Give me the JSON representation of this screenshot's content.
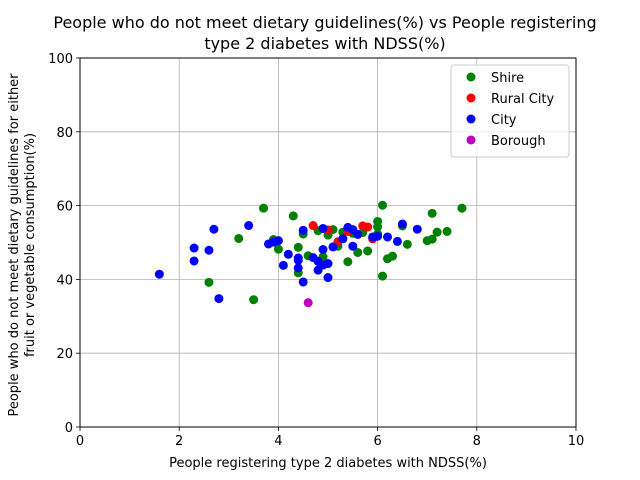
{
  "chart_data": {
    "type": "scatter",
    "title_lines": [
      "People who do not meet dietary guidelines(%) vs People registering",
      "type 2 diabetes with NDSS(%)"
    ],
    "xlabel": "People registering type 2 diabetes with NDSS(%)",
    "ylabel_lines": [
      "People who do not meet dietary guidelines for either",
      "fruit or vegetable consumption(%)"
    ],
    "xlim": [
      0,
      10
    ],
    "ylim": [
      0,
      100
    ],
    "x_ticks": [
      0,
      2,
      4,
      6,
      8,
      10
    ],
    "y_ticks": [
      0,
      20,
      40,
      60,
      80,
      100
    ],
    "grid": true,
    "legend_position": "top-right",
    "series": [
      {
        "name": "Shire",
        "color": "#008000",
        "points": [
          [
            2.6,
            39.2
          ],
          [
            3.2,
            51.1
          ],
          [
            3.5,
            34.5
          ],
          [
            3.7,
            59.3
          ],
          [
            3.9,
            50.8
          ],
          [
            4.0,
            48.2
          ],
          [
            4.3,
            57.2
          ],
          [
            4.4,
            48.7
          ],
          [
            4.4,
            41.8
          ],
          [
            4.5,
            52.3
          ],
          [
            4.6,
            46.4
          ],
          [
            4.8,
            53.2
          ],
          [
            4.9,
            46.1
          ],
          [
            5.0,
            52.0
          ],
          [
            5.1,
            53.5
          ],
          [
            5.2,
            49.0
          ],
          [
            5.3,
            52.8
          ],
          [
            5.4,
            44.8
          ],
          [
            5.5,
            52.5
          ],
          [
            5.6,
            47.3
          ],
          [
            5.7,
            52.7
          ],
          [
            5.8,
            47.7
          ],
          [
            6.0,
            55.7
          ],
          [
            6.0,
            54.3
          ],
          [
            6.0,
            52.3
          ],
          [
            6.1,
            60.1
          ],
          [
            6.1,
            40.9
          ],
          [
            6.2,
            45.6
          ],
          [
            6.3,
            46.3
          ],
          [
            6.5,
            54.5
          ],
          [
            6.6,
            49.5
          ],
          [
            7.0,
            50.5
          ],
          [
            7.1,
            50.9
          ],
          [
            7.1,
            57.9
          ],
          [
            7.2,
            52.8
          ],
          [
            7.4,
            53.0
          ],
          [
            7.7,
            59.3
          ]
        ]
      },
      {
        "name": "Rural City",
        "color": "#ff0000",
        "points": [
          [
            4.7,
            54.6
          ],
          [
            5.0,
            53.4
          ],
          [
            5.2,
            50.2
          ],
          [
            5.4,
            53.0
          ],
          [
            5.7,
            54.5
          ],
          [
            5.8,
            54.2
          ],
          [
            5.9,
            51.0
          ]
        ]
      },
      {
        "name": "City",
        "color": "#0000ff",
        "points": [
          [
            1.6,
            41.4
          ],
          [
            2.3,
            48.5
          ],
          [
            2.3,
            45.0
          ],
          [
            2.6,
            47.9
          ],
          [
            2.7,
            53.6
          ],
          [
            2.8,
            34.8
          ],
          [
            3.4,
            54.6
          ],
          [
            3.8,
            49.6
          ],
          [
            3.9,
            50.1
          ],
          [
            4.0,
            50.5
          ],
          [
            4.1,
            43.8
          ],
          [
            4.2,
            46.8
          ],
          [
            4.4,
            45.2
          ],
          [
            4.4,
            45.8
          ],
          [
            4.4,
            43.1
          ],
          [
            4.5,
            53.3
          ],
          [
            4.5,
            39.3
          ],
          [
            4.7,
            45.9
          ],
          [
            4.8,
            44.9
          ],
          [
            4.8,
            42.5
          ],
          [
            4.9,
            48.1
          ],
          [
            4.9,
            43.9
          ],
          [
            4.9,
            53.8
          ],
          [
            5.0,
            44.3
          ],
          [
            5.0,
            40.5
          ],
          [
            5.1,
            48.8
          ],
          [
            5.3,
            51.0
          ],
          [
            5.4,
            54.1
          ],
          [
            5.5,
            53.5
          ],
          [
            5.5,
            49.0
          ],
          [
            5.6,
            52.2
          ],
          [
            5.9,
            51.5
          ],
          [
            6.0,
            51.7
          ],
          [
            6.2,
            51.5
          ],
          [
            6.4,
            50.3
          ],
          [
            6.5,
            55.0
          ],
          [
            6.8,
            53.6
          ]
        ]
      },
      {
        "name": "Borough",
        "color": "#bf00bf",
        "points": [
          [
            4.6,
            33.7
          ]
        ]
      }
    ]
  }
}
